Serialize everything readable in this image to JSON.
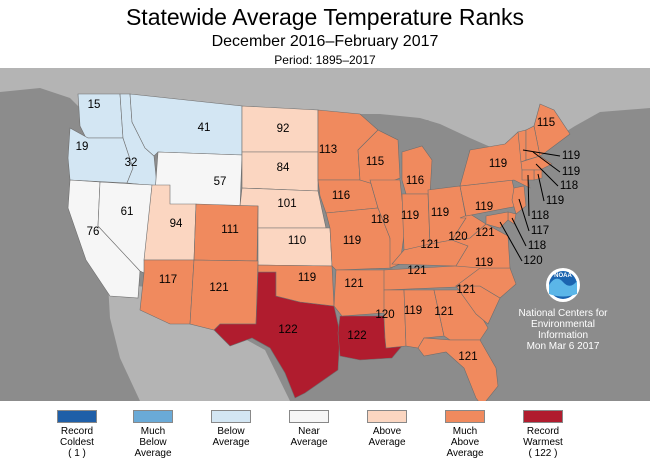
{
  "title": "Statewide Average Temperature Ranks",
  "subtitle": "December 2016–February 2017",
  "period": "Period: 1895–2017",
  "colors": {
    "ocean": "#8c8c8c",
    "land_outside": "#b4b4b4",
    "record_coldest": "#1f5fa8",
    "much_below": "#6aaad7",
    "below": "#d3e6f3",
    "near": "#f6f6f6",
    "above": "#fbd6c1",
    "much_above": "#f08a5e",
    "record_warmest": "#b01c2e"
  },
  "ncei": {
    "logo_text": "NOAA",
    "line1": "National Centers for",
    "line2": "Environmental",
    "line3": "Information",
    "date": "Mon Mar  6 2017"
  },
  "legend": [
    {
      "lines": [
        "Record",
        "Coldest",
        "( 1 )"
      ],
      "color": "#1f5fa8"
    },
    {
      "lines": [
        "Much",
        "Below",
        "Average"
      ],
      "color": "#6aaad7"
    },
    {
      "lines": [
        "Below",
        "Average"
      ],
      "color": "#d3e6f3"
    },
    {
      "lines": [
        "Near",
        "Average"
      ],
      "color": "#f6f6f6"
    },
    {
      "lines": [
        "Above",
        "Average"
      ],
      "color": "#fbd6c1"
    },
    {
      "lines": [
        "Much",
        "Above",
        "Average"
      ],
      "color": "#f08a5e"
    },
    {
      "lines": [
        "Record",
        "Warmest",
        "( 122 )"
      ],
      "color": "#b01c2e"
    }
  ],
  "states": [
    {
      "id": "WA",
      "rank": "15",
      "category": "below"
    },
    {
      "id": "OR",
      "rank": "19",
      "category": "below"
    },
    {
      "id": "ID",
      "rank": "32",
      "category": "below"
    },
    {
      "id": "MT",
      "rank": "41",
      "category": "below"
    },
    {
      "id": "WY",
      "rank": "57",
      "category": "near"
    },
    {
      "id": "CA",
      "rank": "76",
      "category": "near"
    },
    {
      "id": "NV",
      "rank": "61",
      "category": "near"
    },
    {
      "id": "UT",
      "rank": "94",
      "category": "above"
    },
    {
      "id": "ND",
      "rank": "92",
      "category": "above"
    },
    {
      "id": "SD",
      "rank": "84",
      "category": "above"
    },
    {
      "id": "NE",
      "rank": "101",
      "category": "above"
    },
    {
      "id": "KS",
      "rank": "110",
      "category": "above"
    },
    {
      "id": "CO",
      "rank": "111",
      "category": "much_above"
    },
    {
      "id": "AZ",
      "rank": "117",
      "category": "much_above"
    },
    {
      "id": "NM",
      "rank": "121",
      "category": "much_above"
    },
    {
      "id": "TX",
      "rank": "122",
      "category": "record_warmest"
    },
    {
      "id": "LA",
      "rank": "122",
      "category": "record_warmest"
    },
    {
      "id": "OK",
      "rank": "119",
      "category": "much_above"
    },
    {
      "id": "MN",
      "rank": "113",
      "category": "much_above"
    },
    {
      "id": "IA",
      "rank": "116",
      "category": "much_above"
    },
    {
      "id": "MO",
      "rank": "119",
      "category": "much_above"
    },
    {
      "id": "AR",
      "rank": "121",
      "category": "much_above"
    },
    {
      "id": "WI",
      "rank": "115",
      "category": "much_above"
    },
    {
      "id": "IL",
      "rank": "118",
      "category": "much_above"
    },
    {
      "id": "MI",
      "rank": "116",
      "category": "much_above"
    },
    {
      "id": "IN",
      "rank": "119",
      "category": "much_above"
    },
    {
      "id": "OH",
      "rank": "119",
      "category": "much_above"
    },
    {
      "id": "KY",
      "rank": "121",
      "category": "much_above"
    },
    {
      "id": "TN",
      "rank": "121",
      "category": "much_above"
    },
    {
      "id": "MS",
      "rank": "120",
      "category": "much_above"
    },
    {
      "id": "AL",
      "rank": "119",
      "category": "much_above"
    },
    {
      "id": "GA",
      "rank": "121",
      "category": "much_above"
    },
    {
      "id": "FL",
      "rank": "121",
      "category": "much_above"
    },
    {
      "id": "SC",
      "rank": "121",
      "category": "much_above"
    },
    {
      "id": "NC",
      "rank": "119",
      "category": "much_above"
    },
    {
      "id": "VA",
      "rank": "120",
      "category": "much_above"
    },
    {
      "id": "WV",
      "rank": "121",
      "category": "much_above"
    },
    {
      "id": "PA",
      "rank": "119",
      "category": "much_above"
    },
    {
      "id": "NY",
      "rank": "119",
      "category": "much_above"
    },
    {
      "id": "ME",
      "rank": "115",
      "category": "much_above"
    },
    {
      "id": "VT",
      "rank": "119",
      "category": "much_above"
    },
    {
      "id": "NH",
      "rank": "119",
      "category": "much_above"
    },
    {
      "id": "MA",
      "rank": "118",
      "category": "much_above"
    },
    {
      "id": "RI",
      "rank": "119",
      "category": "much_above"
    },
    {
      "id": "CT",
      "rank": "118",
      "category": "much_above"
    },
    {
      "id": "NJ",
      "rank": "117",
      "category": "much_above"
    },
    {
      "id": "DE",
      "rank": "118",
      "category": "much_above"
    },
    {
      "id": "MD",
      "rank": "120",
      "category": "much_above"
    }
  ]
}
